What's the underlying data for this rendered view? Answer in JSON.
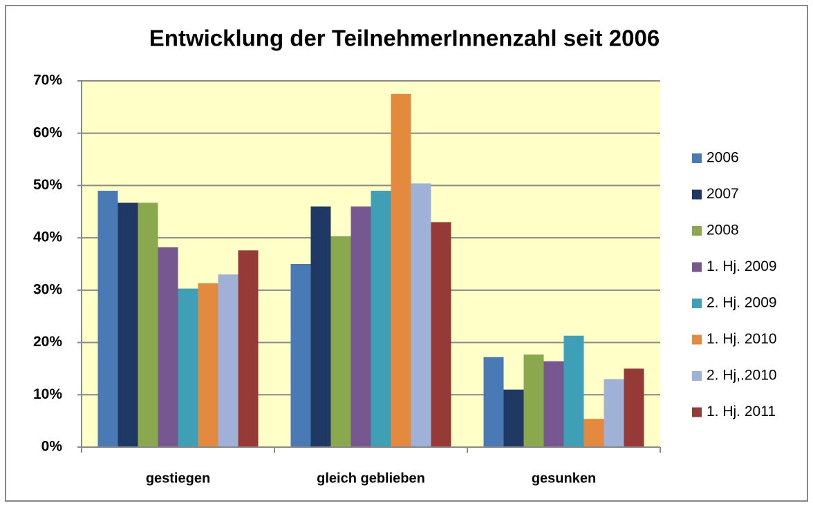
{
  "chart_data": {
    "type": "bar",
    "title": "Entwicklung der TeilnehmerInnenzahl seit 2006",
    "categories": [
      "gestiegen",
      "gleich geblieben",
      "gesunken"
    ],
    "series": [
      {
        "name": "2006",
        "color": "#4a7ab5",
        "values": [
          49,
          35,
          17.2
        ]
      },
      {
        "name": "2007",
        "color": "#1f3864",
        "values": [
          46.7,
          46,
          11
        ]
      },
      {
        "name": "2008",
        "color": "#8aa84d",
        "values": [
          46.7,
          40.3,
          17.7
        ]
      },
      {
        "name": "1. Hj. 2009",
        "color": "#76578f",
        "values": [
          38.2,
          46,
          16.4
        ]
      },
      {
        "name": "2. Hj. 2009",
        "color": "#3f9fb7",
        "values": [
          30.3,
          49,
          21.3
        ]
      },
      {
        "name": "1. Hj. 2010",
        "color": "#e48a3f",
        "values": [
          31.3,
          67.5,
          5.4
        ]
      },
      {
        "name": "2. Hj,.2010",
        "color": "#9fb1d6",
        "values": [
          33,
          50.4,
          13
        ]
      },
      {
        "name": "1. Hj. 2011",
        "color": "#963a38",
        "values": [
          37.6,
          43,
          15
        ]
      }
    ],
    "ylim": [
      0,
      70
    ],
    "yticks": [
      {
        "value": 0,
        "label": "0%"
      },
      {
        "value": 10,
        "label": "10%"
      },
      {
        "value": 20,
        "label": "20%"
      },
      {
        "value": 30,
        "label": "30%"
      },
      {
        "value": 40,
        "label": "40%"
      },
      {
        "value": 50,
        "label": "50%"
      },
      {
        "value": 60,
        "label": "60%"
      },
      {
        "value": 70,
        "label": "70%"
      }
    ],
    "grid": true,
    "legend": "right"
  }
}
